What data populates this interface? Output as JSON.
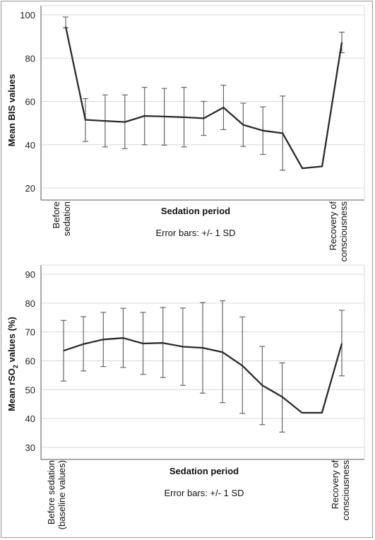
{
  "chart_data": [
    {
      "type": "line",
      "ylabel": "Mean BIS values",
      "xlabel": "Sedation period",
      "note": "Error bars: +/- 1 SD",
      "ylim": [
        16,
        102
      ],
      "yticks": [
        20,
        40,
        60,
        80,
        100
      ],
      "x_labels": {
        "first": [
          "Before",
          "sedation"
        ],
        "last": [
          "Recovery of",
          "consciousness"
        ]
      },
      "grid": "horizontal",
      "series": [
        {
          "values": [
            94.5,
            51.5,
            51,
            50.5,
            53.3,
            53,
            52.7,
            52.2,
            57.2,
            49.2,
            46.5,
            45.3,
            29.1,
            30,
            87.3
          ],
          "error": [
            [
              94,
              99
            ],
            [
              41.5,
              61.3
            ],
            [
              39,
              63
            ],
            [
              38.2,
              63
            ],
            [
              40,
              66.5
            ],
            [
              39.8,
              66
            ],
            [
              39,
              66.5
            ],
            [
              44.3,
              60
            ],
            [
              47,
              67.5
            ],
            [
              39.2,
              59.2
            ],
            [
              35.5,
              57.5
            ],
            [
              28.2,
              62.5
            ],
            null,
            null,
            [
              82.5,
              92
            ]
          ]
        }
      ]
    },
    {
      "type": "line",
      "ylabel_parts": [
        "Mean rSO",
        "2",
        " values (%)"
      ],
      "xlabel": "Sedation period",
      "note": "Error bars: +/- 1 SD",
      "ylim": [
        28,
        92
      ],
      "yticks": [
        30,
        40,
        50,
        60,
        70,
        80,
        90
      ],
      "x_labels": {
        "first": [
          "Before sedation",
          "(baseline values)"
        ],
        "last": [
          "Recovery of",
          "consciousness"
        ]
      },
      "grid": "horizontal",
      "series": [
        {
          "values": [
            63.5,
            65.8,
            67.4,
            67.9,
            66,
            66.2,
            64.9,
            64.5,
            63,
            58.3,
            51.5,
            47.5,
            42,
            42,
            66
          ],
          "error": [
            [
              53,
              74
            ],
            [
              56.5,
              75.3
            ],
            [
              58,
              76.8
            ],
            [
              57.7,
              78.2
            ],
            [
              55.3,
              76.8
            ],
            [
              54.2,
              78.5
            ],
            [
              51.5,
              78.3
            ],
            [
              48.8,
              80.2
            ],
            [
              45.5,
              80.8
            ],
            [
              41.8,
              75.2
            ],
            [
              37.9,
              65
            ],
            [
              35.3,
              59.3
            ],
            null,
            null,
            [
              54.8,
              77.5
            ]
          ]
        }
      ]
    }
  ]
}
